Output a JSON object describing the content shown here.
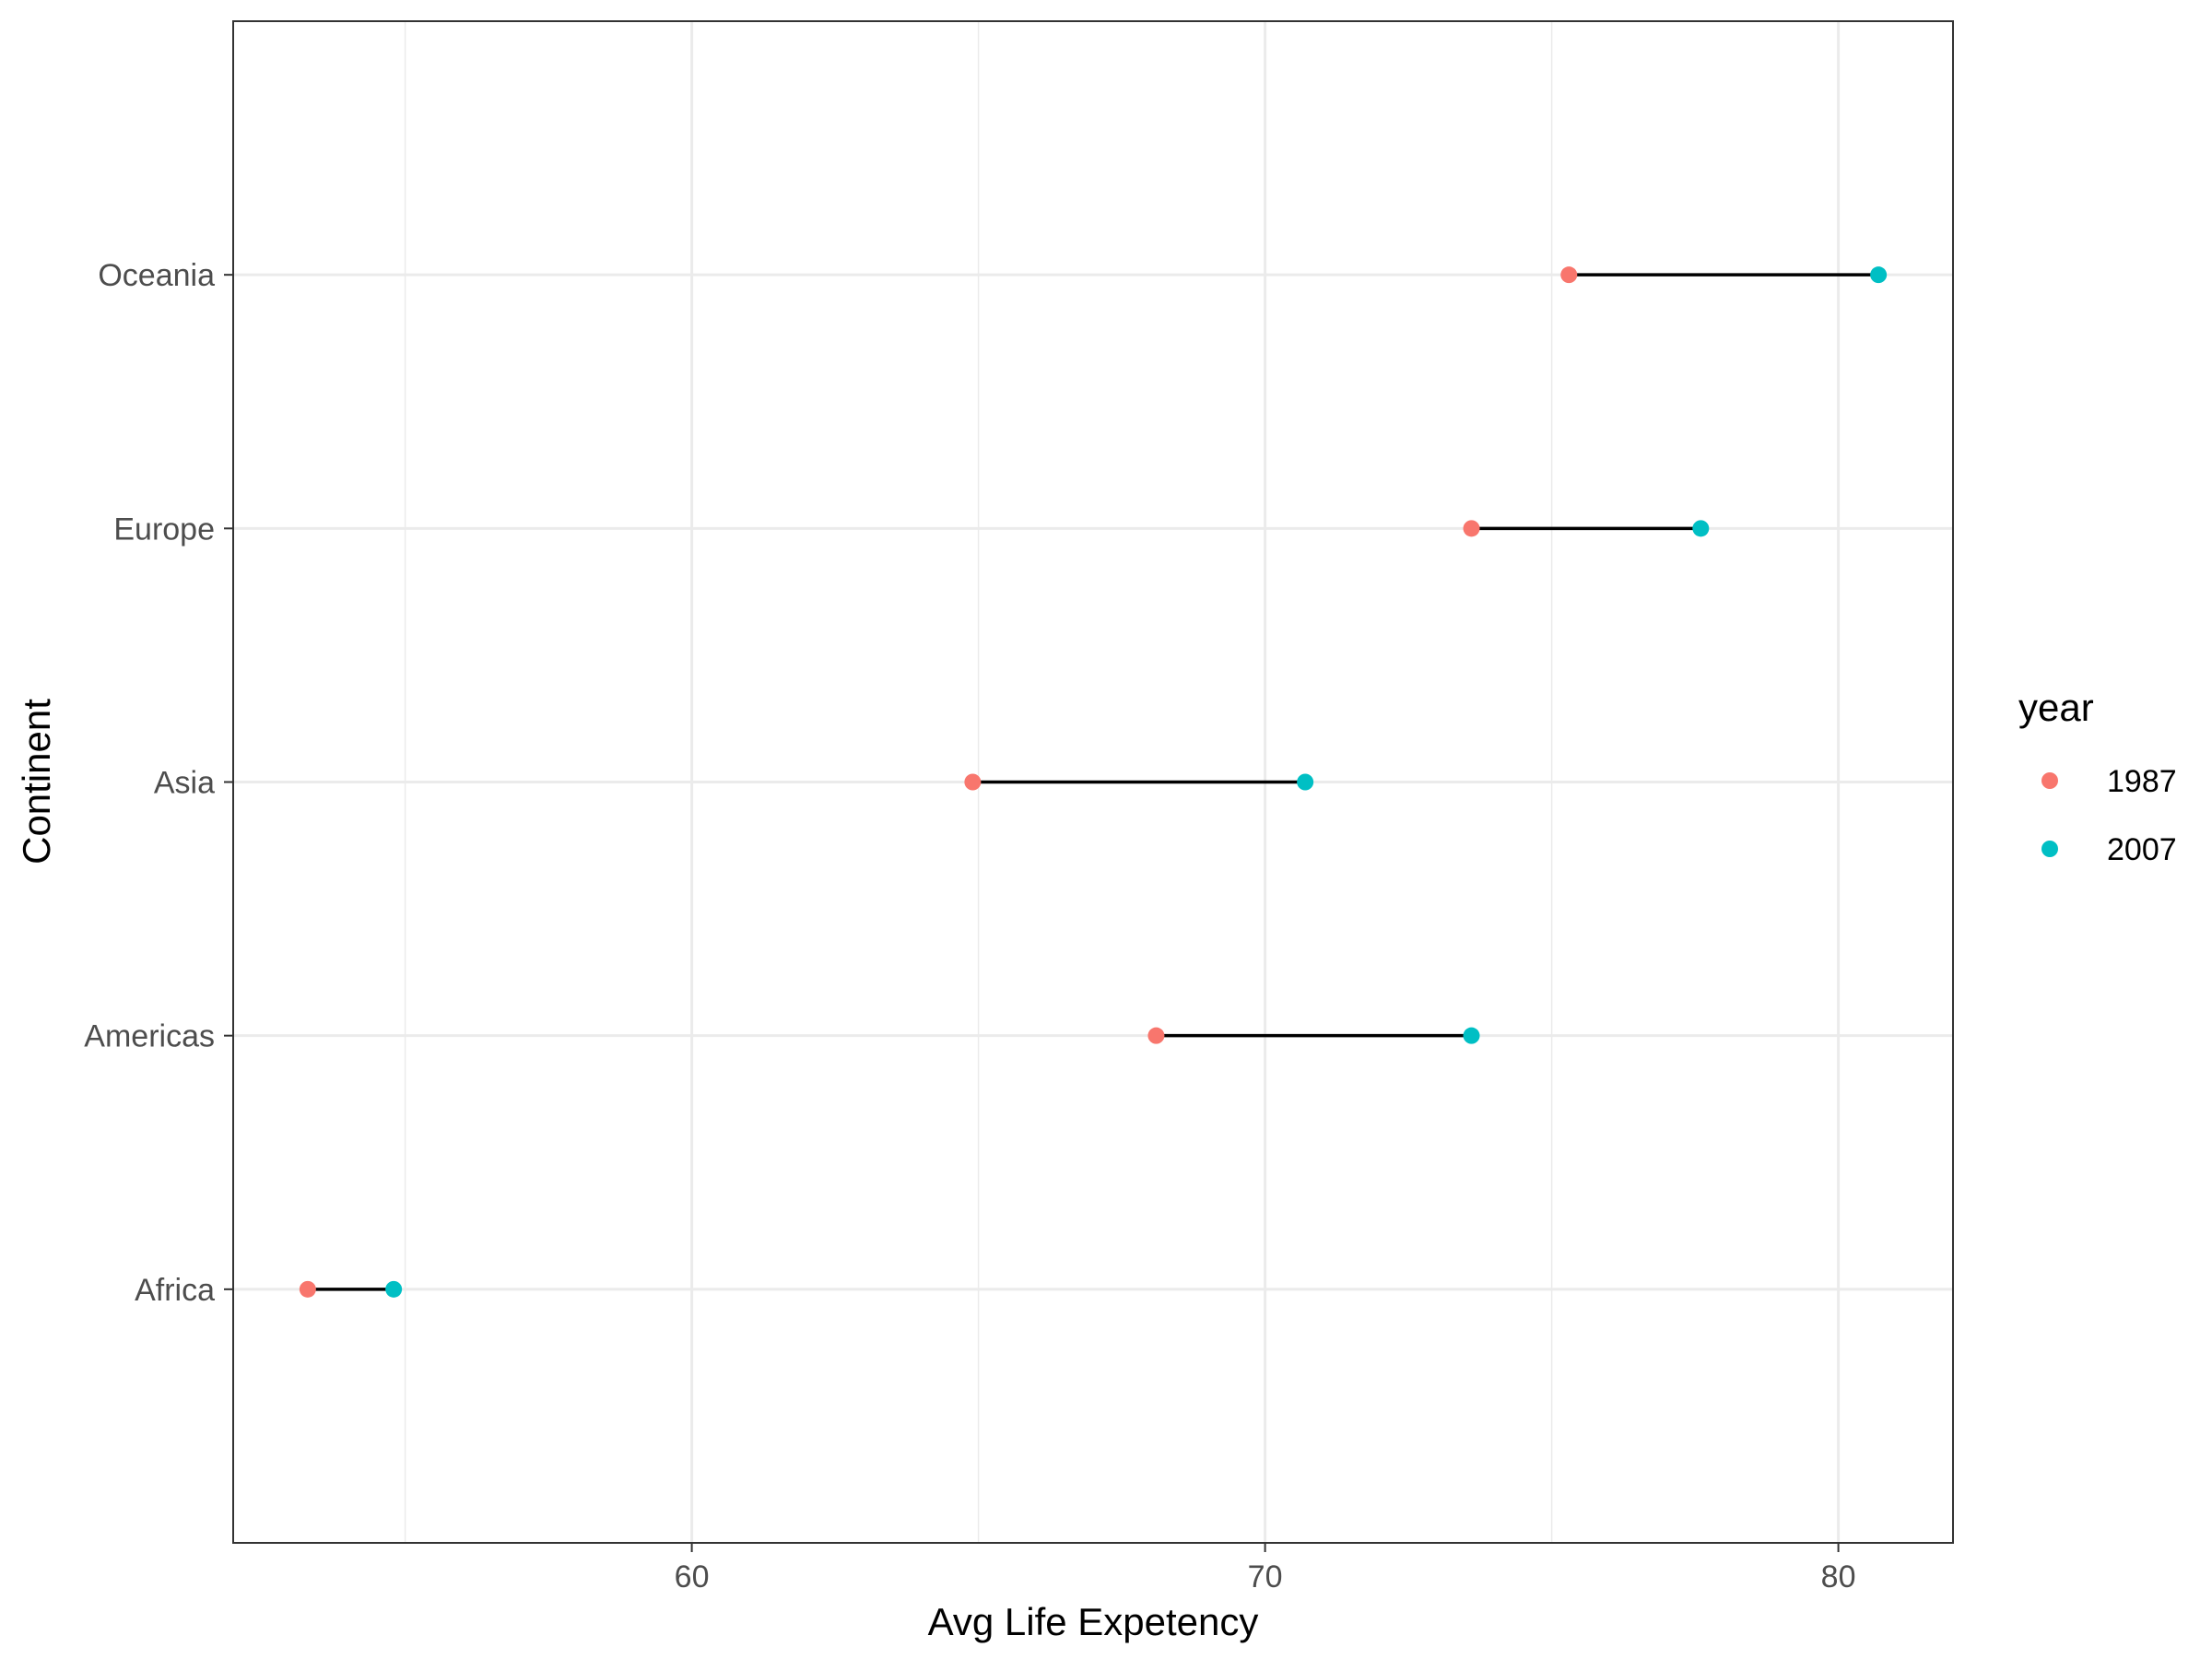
{
  "chart_data": {
    "type": "scatter",
    "subtype": "dumbbell",
    "title": "",
    "xlabel": "Avg Life Expetency",
    "ylabel": "Continent",
    "xlim": [
      52.0,
      82.0
    ],
    "xticks": [
      60,
      70,
      80
    ],
    "categories": [
      "Africa",
      "Americas",
      "Asia",
      "Europe",
      "Oceania"
    ],
    "series": [
      {
        "name": "1987",
        "color": "#F8766D",
        "values": [
          53.3,
          68.1,
          64.9,
          73.6,
          75.3
        ]
      },
      {
        "name": "2007",
        "color": "#00BFC4",
        "values": [
          54.8,
          73.6,
          70.7,
          77.6,
          80.7
        ]
      }
    ],
    "connector_color": "#000000",
    "grid": true,
    "legend": {
      "title": "year",
      "position": "right"
    }
  }
}
